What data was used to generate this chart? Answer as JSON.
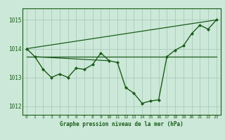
{
  "background_color": "#cce8d8",
  "grid_color": "#aaccbb",
  "line_color": "#1a5c1a",
  "title": "Graphe pression niveau de la mer (hPa)",
  "xlim": [
    -0.5,
    23.5
  ],
  "ylim": [
    1011.7,
    1015.4
  ],
  "yticks": [
    1012,
    1013,
    1014,
    1015
  ],
  "xticks": [
    0,
    1,
    2,
    3,
    4,
    5,
    6,
    7,
    8,
    9,
    10,
    11,
    12,
    13,
    14,
    15,
    16,
    17,
    18,
    19,
    20,
    21,
    22,
    23
  ],
  "main_series": {
    "x": [
      0,
      1,
      2,
      3,
      4,
      5,
      6,
      7,
      8,
      9,
      10,
      11,
      12,
      13,
      14,
      15,
      16,
      17,
      18,
      19,
      20,
      21,
      22,
      23
    ],
    "y": [
      1014.0,
      1013.72,
      1013.28,
      1013.0,
      1013.12,
      1013.0,
      1013.32,
      1013.28,
      1013.45,
      1013.85,
      1013.58,
      1013.52,
      1012.65,
      1012.45,
      1012.1,
      1012.18,
      1012.22,
      1013.72,
      1013.95,
      1014.1,
      1014.52,
      1014.82,
      1014.68,
      1015.0
    ]
  },
  "trend_line": {
    "x": [
      0,
      23
    ],
    "y": [
      1014.0,
      1015.0
    ]
  },
  "flat_line": {
    "x": [
      0,
      23
    ],
    "y": [
      1013.72,
      1013.72
    ]
  },
  "extra_line1": {
    "x": [
      1,
      10
    ],
    "y": [
      1013.72,
      1013.58
    ]
  }
}
